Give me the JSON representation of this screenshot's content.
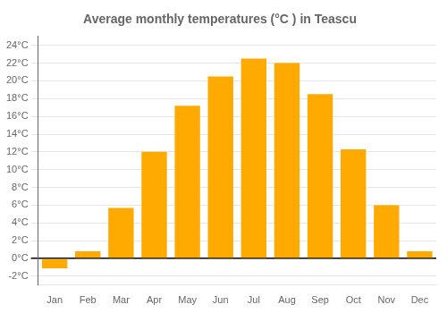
{
  "chart_data": {
    "type": "bar",
    "title": "Average monthly temperatures (°C ) in Teascu",
    "categories": [
      "Jan",
      "Feb",
      "Mar",
      "Apr",
      "May",
      "Jun",
      "Jul",
      "Aug",
      "Sep",
      "Oct",
      "Nov",
      "Dec"
    ],
    "values": [
      -1.1,
      0.8,
      5.7,
      12.0,
      17.2,
      20.5,
      22.5,
      22.0,
      18.5,
      12.3,
      6.0,
      0.8
    ],
    "color": "#FFAA00",
    "ylim": [
      -3,
      25
    ],
    "yticks": [
      {
        "value": -2,
        "label": "-2°C"
      },
      {
        "value": 0,
        "label": "0°C"
      },
      {
        "value": 2,
        "label": "2°C"
      },
      {
        "value": 4,
        "label": "4°C"
      },
      {
        "value": 6,
        "label": "6°C"
      },
      {
        "value": 8,
        "label": "8°C"
      },
      {
        "value": 10,
        "label": "10°C"
      },
      {
        "value": 12,
        "label": "12°C"
      },
      {
        "value": 14,
        "label": "14°C"
      },
      {
        "value": 16,
        "label": "16°C"
      },
      {
        "value": 18,
        "label": "18°C"
      },
      {
        "value": 20,
        "label": "20°C"
      },
      {
        "value": 22,
        "label": "22°C"
      },
      {
        "value": 24,
        "label": "24°C"
      }
    ],
    "grid": true
  }
}
